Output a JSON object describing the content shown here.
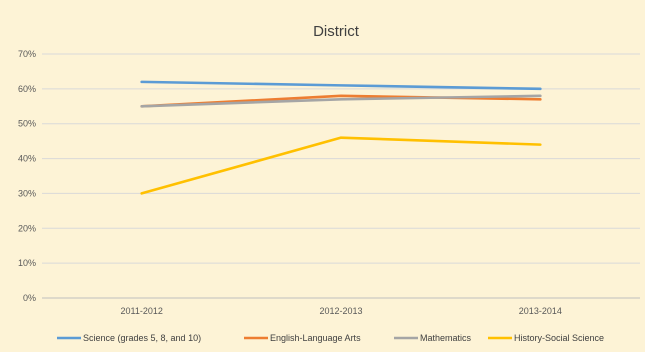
{
  "chart_data": {
    "type": "line",
    "title": "District",
    "xlabel": "",
    "ylabel": "",
    "categories": [
      "2011-2012",
      "2012-2013",
      "2013-2014"
    ],
    "ylim": [
      0,
      70
    ],
    "yticks": [
      "0%",
      "10%",
      "20%",
      "30%",
      "40%",
      "50%",
      "60%",
      "70%"
    ],
    "grid": true,
    "legend_position": "bottom",
    "series": [
      {
        "name": "Science (grades 5, 8, and 10)",
        "values": [
          62,
          61,
          60
        ],
        "color": "#5b9bd5"
      },
      {
        "name": "English-Language Arts",
        "values": [
          55,
          58,
          57
        ],
        "color": "#ed7d31"
      },
      {
        "name": "Mathematics",
        "values": [
          55,
          57,
          58
        ],
        "color": "#a5a5a5"
      },
      {
        "name": "History-Social Science",
        "values": [
          30,
          46,
          44
        ],
        "color": "#ffc000"
      }
    ]
  }
}
